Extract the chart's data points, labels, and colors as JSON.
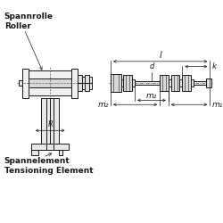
{
  "bg_color": "#ffffff",
  "line_color": "#1a1a1a",
  "label_spannrolle": "Spannrolle\nRoller",
  "label_spannelement": "Spannelement\nTensioning Element",
  "label_l": "l",
  "label_k": "k",
  "label_d": "d",
  "label_m1": "m₁",
  "label_m2": "m₂",
  "label_m2b": "m₂",
  "label_R": "R"
}
